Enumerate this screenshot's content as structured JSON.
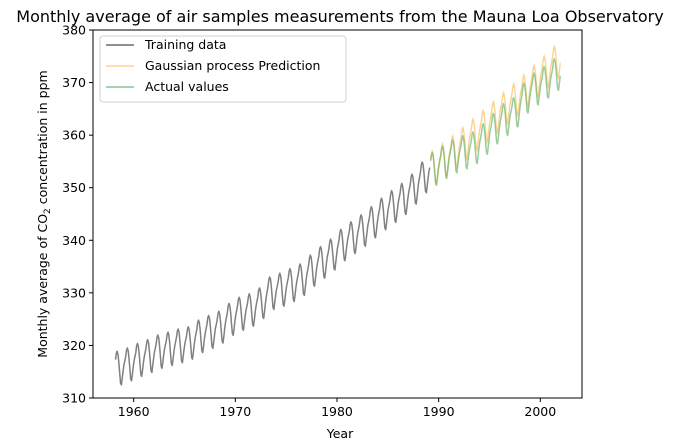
{
  "chart_data": {
    "type": "line",
    "title": "Monthly average of air samples measurements from the Mauna Loa Observatory",
    "xlabel": "Year",
    "ylabel_prefix": "Monthly average of CO",
    "ylabel_sub": "2",
    "ylabel_suffix": " concentration in ppm",
    "xlim": [
      1956.0,
      2004.1
    ],
    "ylim": [
      310,
      380
    ],
    "xticks": [
      1960,
      1970,
      1980,
      1990,
      2000
    ],
    "yticks": [
      310,
      320,
      330,
      340,
      350,
      360,
      370,
      380
    ],
    "grid": false,
    "legend_position": "top-left",
    "seasonal_offsets_by_month": [
      0.6,
      1.3,
      2.0,
      3.2,
      3.6,
      3.0,
      1.5,
      -0.6,
      -2.6,
      -3.0,
      -1.8,
      -0.5
    ],
    "series": [
      {
        "name": "Training data",
        "color": "#808080",
        "opacity": 1.0,
        "start_year": 1958,
        "start_month": 3,
        "end_year": 1989,
        "end_month": 2,
        "annual_means": {
          "1958": 315.3,
          "1959": 316.0,
          "1960": 316.9,
          "1961": 317.6,
          "1962": 318.5,
          "1963": 319.0,
          "1964": 319.6,
          "1965": 320.0,
          "1966": 321.4,
          "1967": 322.2,
          "1968": 323.0,
          "1969": 324.6,
          "1970": 325.7,
          "1971": 326.3,
          "1972": 327.5,
          "1973": 329.7,
          "1974": 330.2,
          "1975": 331.1,
          "1976": 332.0,
          "1977": 333.8,
          "1978": 335.4,
          "1979": 336.8,
          "1980": 338.7,
          "1981": 340.1,
          "1982": 341.4,
          "1983": 343.0,
          "1984": 344.6,
          "1985": 346.0,
          "1986": 347.4,
          "1987": 349.2,
          "1988": 351.6,
          "1989": 353.1
        }
      },
      {
        "name": "Gaussian process Prediction",
        "color": "#f5c060",
        "opacity": 0.55,
        "start_year": 1989,
        "start_month": 3,
        "end_year": 2001,
        "end_month": 12,
        "annual_means": {
          "1989": 353.3,
          "1990": 354.9,
          "1991": 356.4,
          "1992": 358.0,
          "1993": 359.6,
          "1994": 361.2,
          "1995": 362.9,
          "1996": 364.6,
          "1997": 366.3,
          "1998": 368.0,
          "1999": 369.8,
          "2000": 371.6,
          "2001": 373.4
        },
        "band_halfwidth": 0.6
      },
      {
        "name": "Actual values",
        "color": "#5aaa5a",
        "opacity": 0.6,
        "start_year": 1989,
        "start_month": 3,
        "end_year": 2001,
        "end_month": 12,
        "annual_means": {
          "1989": 353.1,
          "1990": 354.4,
          "1991": 355.6,
          "1992": 356.4,
          "1993": 357.1,
          "1994": 358.8,
          "1995": 360.8,
          "1996": 362.6,
          "1997": 363.7,
          "1998": 366.7,
          "1999": 368.4,
          "2000": 369.6,
          "2001": 371.1
        }
      }
    ]
  }
}
